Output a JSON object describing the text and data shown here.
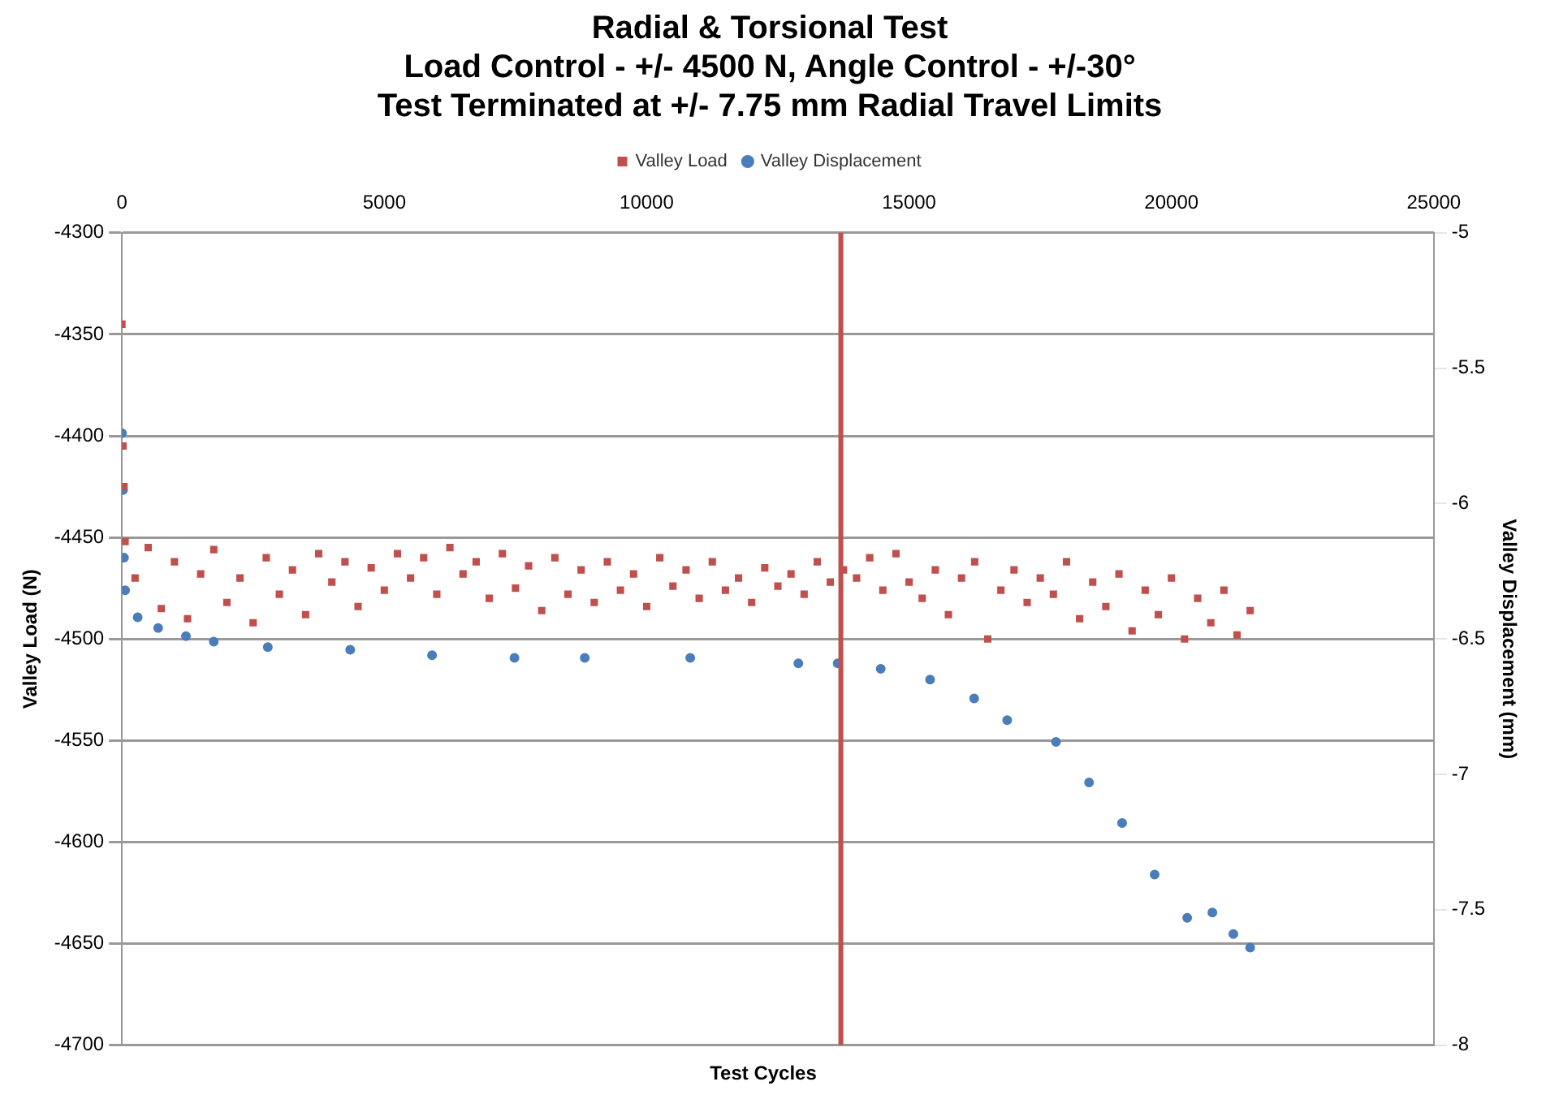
{
  "chart_data": {
    "type": "scatter",
    "title": "Radial & Torsional Test\nLoad Control - +/- 4500 N, Angle Control - +/-30°\nTest Terminated at +/- 7.75 mm Radial Travel Limits",
    "xlabel": "Test Cycles",
    "ylabel": "Valley Load (N)",
    "y2label": "Valley Displacement (mm)",
    "xlim": [
      0,
      25000
    ],
    "xticks": [
      0,
      5000,
      10000,
      15000,
      20000,
      25000
    ],
    "ylim": [
      -4700,
      -4300
    ],
    "yticks": [
      -4700,
      -4650,
      -4600,
      -4550,
      -4500,
      -4450,
      -4400,
      -4350,
      -4300
    ],
    "y2lim": [
      -8,
      -5
    ],
    "y2ticks": [
      -8,
      -7.5,
      -7,
      -6.5,
      -6,
      -5.5,
      -5
    ],
    "grid": "y",
    "legend": "top",
    "ref_lines": [
      {
        "axis": "x",
        "value": 13700,
        "color": "#c0504d"
      }
    ],
    "series": [
      {
        "name": "Valley Load",
        "color": "#c0504d",
        "marker": "square",
        "x": [
          0,
          20,
          40,
          60,
          250,
          500,
          750,
          1000,
          1250,
          1500,
          1750,
          2000,
          2250,
          2500,
          2750,
          3000,
          3250,
          3500,
          3750,
          4000,
          4250,
          4500,
          4750,
          5000,
          5250,
          5500,
          5750,
          6000,
          6250,
          6500,
          6750,
          7000,
          7250,
          7500,
          7750,
          8000,
          8250,
          8500,
          8750,
          9000,
          9250,
          9500,
          9750,
          10000,
          10250,
          10500,
          10750,
          11000,
          11250,
          11500,
          11750,
          12000,
          12250,
          12500,
          12750,
          13000,
          13250,
          13500,
          13750,
          14000,
          14250,
          14500,
          14750,
          15000,
          15250,
          15500,
          15750,
          16000,
          16250,
          16500,
          16750,
          17000,
          17250,
          17500,
          17750,
          18000,
          18250,
          18500,
          18750,
          19000,
          19250,
          19500,
          19750,
          20000,
          20250,
          20500,
          20750,
          21000,
          21250,
          21500
        ],
        "values": [
          -4345,
          -4405,
          -4425,
          -4452,
          -4470,
          -4455,
          -4485,
          -4462,
          -4490,
          -4468,
          -4456,
          -4482,
          -4470,
          -4492,
          -4460,
          -4478,
          -4466,
          -4488,
          -4458,
          -4472,
          -4462,
          -4484,
          -4465,
          -4476,
          -4458,
          -4470,
          -4460,
          -4478,
          -4455,
          -4468,
          -4462,
          -4480,
          -4458,
          -4475,
          -4464,
          -4486,
          -4460,
          -4478,
          -4466,
          -4482,
          -4462,
          -4476,
          -4468,
          -4484,
          -4460,
          -4474,
          -4466,
          -4480,
          -4462,
          -4476,
          -4470,
          -4482,
          -4465,
          -4474,
          -4468,
          -4478,
          -4462,
          -4472,
          -4466,
          -4470,
          -4460,
          -4476,
          -4458,
          -4472,
          -4480,
          -4466,
          -4488,
          -4470,
          -4462,
          -4500,
          -4476,
          -4466,
          -4482,
          -4470,
          -4478,
          -4462,
          -4490,
          -4472,
          -4484,
          -4468,
          -4496,
          -4476,
          -4488,
          -4470,
          -4500,
          -4480,
          -4492,
          -4476,
          -4498,
          -4486
        ]
      },
      {
        "name": "Valley Displacement",
        "color": "#4a7ebb",
        "marker": "circle",
        "axis": "y2",
        "x": [
          0,
          20,
          40,
          60,
          300,
          690,
          1220,
          1750,
          2780,
          4350,
          5910,
          7480,
          8820,
          10830,
          12890,
          13640,
          14460,
          15400,
          16240,
          16870,
          17800,
          18430,
          19060,
          19680,
          20300,
          20780,
          21180,
          21500
        ],
        "values": [
          -5.74,
          -5.95,
          -6.2,
          -6.32,
          -6.42,
          -6.46,
          -6.49,
          -6.51,
          -6.53,
          -6.54,
          -6.56,
          -6.57,
          -6.57,
          -6.57,
          -6.59,
          -6.59,
          -6.61,
          -6.65,
          -6.72,
          -6.8,
          -6.88,
          -7.03,
          -7.18,
          -7.37,
          -7.53,
          -7.51,
          -7.59,
          -7.64
        ]
      }
    ]
  }
}
